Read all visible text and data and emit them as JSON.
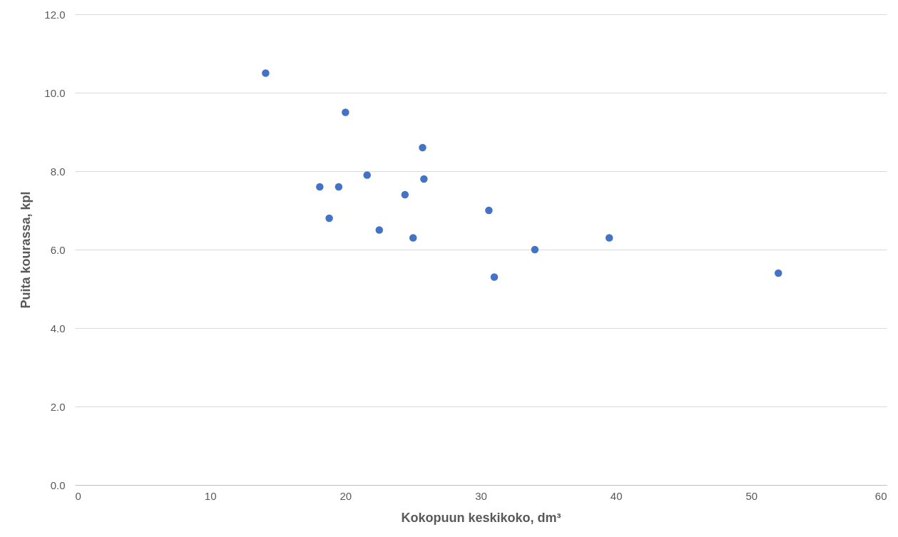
{
  "chart_data": {
    "type": "scatter",
    "xlabel": "Kokopuun keskikoko, dm³",
    "ylabel": "Puita kourassa, kpl",
    "x": [
      14.1,
      20.0,
      25.7,
      21.6,
      25.8,
      18.1,
      19.5,
      24.4,
      30.6,
      18.8,
      22.5,
      25.0,
      39.5,
      34.0,
      31.0,
      52.0
    ],
    "series": [
      {
        "color": "#4472c4",
        "values": [
          10.5,
          9.5,
          8.6,
          7.9,
          7.8,
          7.6,
          7.6,
          7.4,
          7.0,
          6.8,
          6.5,
          6.3,
          6.3,
          6.0,
          5.3,
          5.4
        ]
      }
    ],
    "xlim": [
      0,
      60
    ],
    "xticks": [
      0,
      10,
      20,
      30,
      40,
      50,
      60
    ],
    "ylim": [
      0,
      12
    ],
    "yticks": [
      {
        "value": 0,
        "label": "0.0"
      },
      {
        "value": 2,
        "label": "2.0"
      },
      {
        "value": 4,
        "label": "4.0"
      },
      {
        "value": 6,
        "label": "6.0"
      },
      {
        "value": 8,
        "label": "8.0"
      },
      {
        "value": 10,
        "label": "10.0"
      },
      {
        "value": 12,
        "label": "12.0"
      }
    ],
    "grid": "y",
    "legend": false,
    "marker": "circle"
  }
}
